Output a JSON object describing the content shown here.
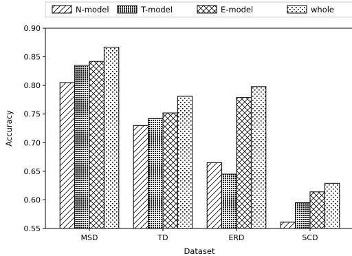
{
  "chart_data": {
    "type": "bar",
    "title": "",
    "xlabel": "Dataset",
    "ylabel": "Accuracy",
    "categories": [
      "MSD",
      "TD",
      "ERD",
      "SCD"
    ],
    "ylim": [
      0.55,
      0.9
    ],
    "yticks": [
      "0.55",
      "0.60",
      "0.65",
      "0.70",
      "0.75",
      "0.80",
      "0.85",
      "0.90"
    ],
    "grid": false,
    "legend_position": "top",
    "series": [
      {
        "name": "N-model",
        "pattern": "diagonal-hatch",
        "values": [
          0.805,
          0.73,
          0.665,
          0.561
        ]
      },
      {
        "name": "T-model",
        "pattern": "dense-dots",
        "values": [
          0.835,
          0.742,
          0.645,
          0.595
        ]
      },
      {
        "name": "E-model",
        "pattern": "crosshatch",
        "values": [
          0.842,
          0.752,
          0.779,
          0.614
        ]
      },
      {
        "name": "whole",
        "pattern": "sparse-dots",
        "values": [
          0.867,
          0.781,
          0.798,
          0.629
        ]
      }
    ]
  }
}
